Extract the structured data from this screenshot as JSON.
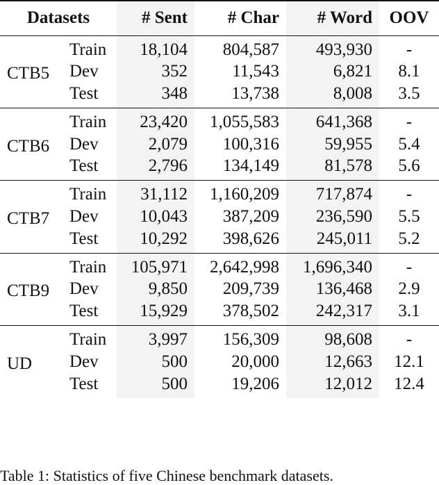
{
  "table": {
    "headers": [
      "Datasets",
      "",
      "# Sent",
      "# Char",
      "# Word",
      "OOV"
    ],
    "groups": [
      {
        "dataset": "CTB5",
        "rows": [
          {
            "split": "Train",
            "sent": "18,104",
            "char": "804,587",
            "word": "493,930",
            "oov": "-"
          },
          {
            "split": "Dev",
            "sent": "352",
            "char": "11,543",
            "word": "6,821",
            "oov": "8.1"
          },
          {
            "split": "Test",
            "sent": "348",
            "char": "13,738",
            "word": "8,008",
            "oov": "3.5"
          }
        ]
      },
      {
        "dataset": "CTB6",
        "rows": [
          {
            "split": "Train",
            "sent": "23,420",
            "char": "1,055,583",
            "word": "641,368",
            "oov": "-"
          },
          {
            "split": "Dev",
            "sent": "2,079",
            "char": "100,316",
            "word": "59,955",
            "oov": "5.4"
          },
          {
            "split": "Test",
            "sent": "2,796",
            "char": "134,149",
            "word": "81,578",
            "oov": "5.6"
          }
        ]
      },
      {
        "dataset": "CTB7",
        "rows": [
          {
            "split": "Train",
            "sent": "31,112",
            "char": "1,160,209",
            "word": "717,874",
            "oov": "-"
          },
          {
            "split": "Dev",
            "sent": "10,043",
            "char": "387,209",
            "word": "236,590",
            "oov": "5.5"
          },
          {
            "split": "Test",
            "sent": "10,292",
            "char": "398,626",
            "word": "245,011",
            "oov": "5.2"
          }
        ]
      },
      {
        "dataset": "CTB9",
        "rows": [
          {
            "split": "Train",
            "sent": "105,971",
            "char": "2,642,998",
            "word": "1,696,340",
            "oov": "-"
          },
          {
            "split": "Dev",
            "sent": "9,850",
            "char": "209,739",
            "word": "136,468",
            "oov": "2.9"
          },
          {
            "split": "Test",
            "sent": "15,929",
            "char": "378,502",
            "word": "242,317",
            "oov": "3.1"
          }
        ]
      },
      {
        "dataset": "UD",
        "rows": [
          {
            "split": "Train",
            "sent": "3,997",
            "char": "156,309",
            "word": "98,608",
            "oov": "-"
          },
          {
            "split": "Dev",
            "sent": "500",
            "char": "20,000",
            "word": "12,663",
            "oov": "12.1"
          },
          {
            "split": "Test",
            "sent": "500",
            "char": "19,206",
            "word": "12,012",
            "oov": "12.4"
          }
        ]
      }
    ]
  },
  "caption": "Table 1: Statistics of five Chinese benchmark datasets."
}
